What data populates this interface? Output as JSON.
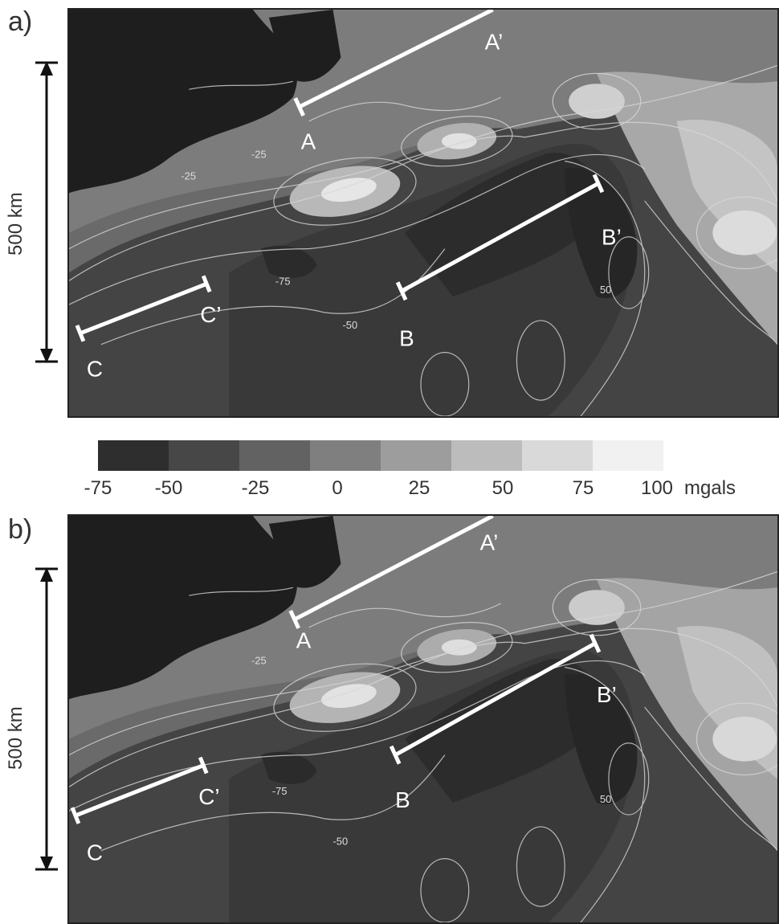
{
  "panels": [
    {
      "label": "a)"
    },
    {
      "label": "b)"
    }
  ],
  "scale_bar": {
    "label": "500 km"
  },
  "profiles": {
    "A": "A",
    "A_prime": "A’",
    "B": "B",
    "B_prime": "B’",
    "C": "C",
    "C_prime": "C’"
  },
  "contour_labels": [
    "-25",
    "-25",
    "-75",
    "-50",
    "-50",
    "-25",
    "50"
  ],
  "colorbar": {
    "unit": "mgals",
    "ticks": [
      "-75",
      "-50",
      "-25",
      "0",
      "25",
      "50",
      "75",
      "100"
    ],
    "colors": [
      "#2e2e2e",
      "#474747",
      "#626262",
      "#7f7f7f",
      "#9d9d9d",
      "#bcbcbc",
      "#d9d9d9",
      "#f1f1f1"
    ]
  }
}
